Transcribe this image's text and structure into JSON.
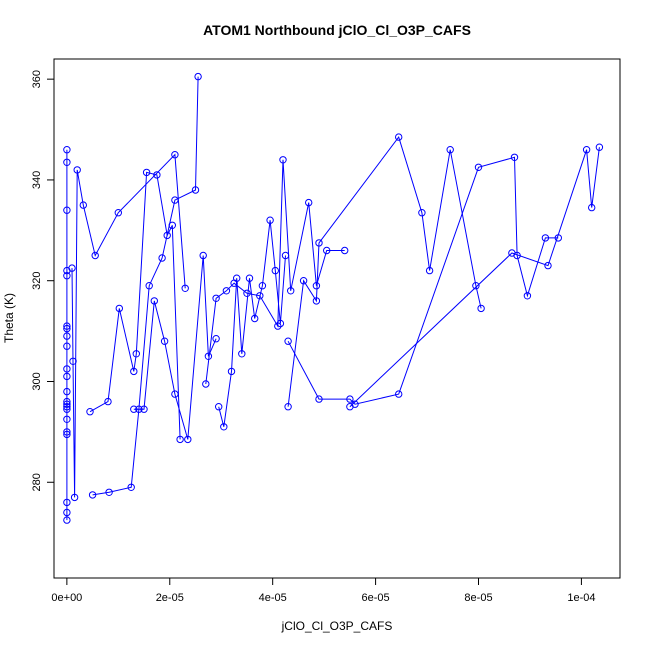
{
  "chart_data": {
    "type": "scatter",
    "title": "ATOM1 Northbound jClO_Cl_O3P_CAFS",
    "xlabel": "jClO_Cl_O3P_CAFS",
    "ylabel": "Theta (K)",
    "xlim": [
      -2.5e-06,
      0.0001075
    ],
    "ylim": [
      261,
      364
    ],
    "x_ticks": [
      0,
      2e-05,
      4e-05,
      6e-05,
      8e-05,
      0.0001
    ],
    "x_tick_labels": [
      "0e+00",
      "2e-05",
      "4e-05",
      "6e-05",
      "8e-05",
      "1e-04"
    ],
    "y_ticks": [
      280,
      300,
      320,
      340,
      360
    ],
    "y_tick_labels": [
      "280",
      "300",
      "320",
      "340",
      "360"
    ],
    "grid": false,
    "color": "#0000ff",
    "marker": "open-circle",
    "connect_points": true,
    "series": [
      {
        "x": [
          0.0,
          0.0,
          0.0,
          0.0,
          0.0,
          0.0,
          0.0,
          0.0,
          0.0,
          0.0,
          0.0,
          0.0,
          0.0,
          0.0,
          0.0,
          0.0,
          0.0,
          0.0,
          0.0,
          0.0,
          0.0,
          0.0
        ],
        "y": [
          272.5,
          274.0,
          276.0,
          290.0,
          294.5,
          295.5,
          296.0,
          301.0,
          302.5,
          307.0,
          309.0,
          310.5,
          311.0,
          321.0,
          322.0,
          334.0,
          343.5,
          346.0,
          289.5,
          292.5,
          295.0,
          298.0
        ]
      },
      {
        "x": [
          1e-06,
          1.2e-06,
          1.5e-06,
          2e-06,
          3.2e-06,
          5.5e-06,
          1e-05,
          2.1e-05,
          2.3e-05
        ],
        "y": [
          322.5,
          304.0,
          277.0,
          342.0,
          335.0,
          325.0,
          333.5,
          345.0,
          318.5
        ]
      },
      {
        "x": [
          4.5e-06,
          8e-06,
          1.02e-05,
          1.3e-05,
          1.35e-05,
          1.55e-05,
          1.75e-05,
          1.95e-05,
          2.05e-05,
          2.2e-05
        ],
        "y": [
          294.0,
          296.0,
          314.5,
          302.0,
          305.5,
          341.5,
          341.0,
          329.0,
          331.0,
          288.5
        ]
      },
      {
        "x": [
          5e-06,
          8.2e-06,
          1.25e-05,
          1.4e-05,
          1.6e-05,
          1.85e-05,
          2.1e-05,
          2.5e-05,
          2.55e-05
        ],
        "y": [
          277.5,
          278.0,
          279.0,
          294.5,
          319.0,
          324.5,
          336.0,
          338.0,
          360.5
        ]
      },
      {
        "x": [
          1.3e-05,
          1.5e-05,
          1.7e-05,
          1.9e-05,
          2.1e-05,
          2.35e-05,
          2.65e-05,
          2.75e-05,
          2.9e-05
        ],
        "y": [
          294.5,
          294.5,
          316.0,
          308.0,
          297.5,
          288.5,
          325.0,
          305.0,
          308.5
        ]
      },
      {
        "x": [
          2.95e-05,
          3.05e-05,
          3.2e-05,
          3.3e-05,
          3.4e-05,
          3.55e-05,
          3.65e-05,
          3.8e-05,
          3.95e-05,
          4.05e-05,
          4.15e-05,
          4.25e-05
        ],
        "y": [
          295.0,
          291.0,
          302.0,
          320.5,
          305.5,
          320.5,
          312.5,
          319.0,
          332.0,
          322.0,
          311.5,
          325.0
        ]
      },
      {
        "x": [
          2.7e-05,
          2.9e-05,
          3.1e-05,
          3.25e-05,
          3.5e-05,
          3.75e-05,
          4.1e-05,
          4.2e-05,
          4.35e-05,
          4.7e-05,
          4.85e-05,
          5.05e-05,
          5.4e-05
        ],
        "y": [
          299.5,
          316.5,
          318.0,
          319.5,
          317.5,
          317.0,
          311.0,
          344.0,
          318.0,
          335.5,
          319.0,
          326.0,
          326.0
        ]
      },
      {
        "x": [
          4.3e-05,
          4.6e-05,
          4.85e-05,
          4.9e-05,
          6.45e-05,
          6.9e-05,
          7.05e-05,
          7.45e-05,
          7.95e-05,
          8.05e-05
        ],
        "y": [
          295.0,
          320.0,
          316.0,
          327.5,
          348.5,
          333.5,
          322.0,
          346.0,
          319.0,
          314.5
        ]
      },
      {
        "x": [
          4.3e-05,
          4.9e-05,
          5.5e-05,
          5.6e-05,
          6.45e-05,
          8e-05,
          8.7e-05,
          8.75e-05,
          8.95e-05,
          9.3e-05,
          9.55e-05
        ],
        "y": [
          308.0,
          296.5,
          296.5,
          295.5,
          297.5,
          342.5,
          344.5,
          325.0,
          317.0,
          328.5,
          328.5
        ]
      },
      {
        "x": [
          5.5e-05,
          8.65e-05,
          9.35e-05,
          0.000101,
          0.000102,
          0.0001035
        ],
        "y": [
          295.0,
          325.5,
          323.0,
          346.0,
          334.5,
          346.5
        ]
      }
    ]
  }
}
